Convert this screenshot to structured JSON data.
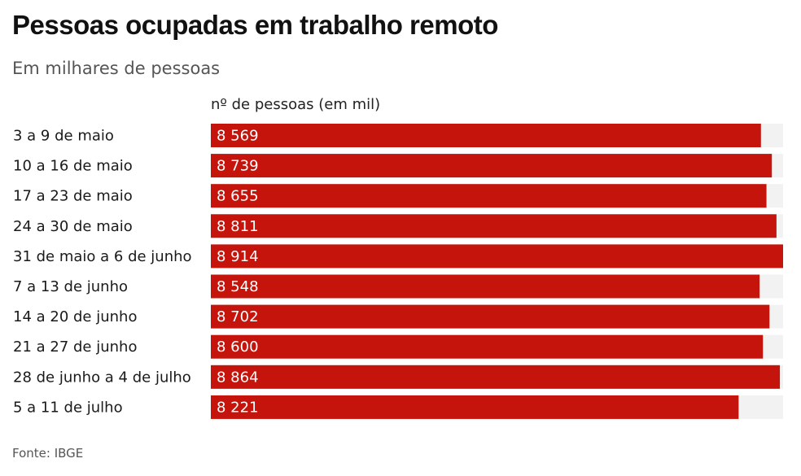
{
  "header": {
    "title": "Pessoas ocupadas em trabalho remoto",
    "subtitle": "Em milhares de pessoas",
    "column_header": "nº de pessoas (em mil)"
  },
  "footer": {
    "source": "Fonte: IBGE"
  },
  "colors": {
    "bar": "#c4140c",
    "track": "#f2f2f2"
  },
  "chart_data": {
    "type": "bar",
    "orientation": "horizontal",
    "title": "Pessoas ocupadas em trabalho remoto",
    "subtitle": "Em milhares de pessoas",
    "xlabel": "nº de pessoas (em mil)",
    "ylabel": "",
    "categories": [
      "3 a 9 de maio",
      "10 a 16 de maio",
      "17 a 23 de maio",
      "24 a 30 de maio",
      "31 de maio a 6 de junho",
      "7 a 13 de junho",
      "14 a 20 de junho",
      "21 a 27 de junho",
      "28 de junho a 4 de julho",
      "5 a 11 de julho"
    ],
    "values": [
      8569,
      8739,
      8655,
      8811,
      8914,
      8548,
      8702,
      8600,
      8864,
      8221
    ],
    "value_labels": [
      "8 569",
      "8 739",
      "8 655",
      "8 811",
      "8 914",
      "8 548",
      "8 702",
      "8 600",
      "8 864",
      "8 221"
    ],
    "xlim": [
      0,
      8914
    ],
    "grid": false,
    "legend": "none"
  }
}
